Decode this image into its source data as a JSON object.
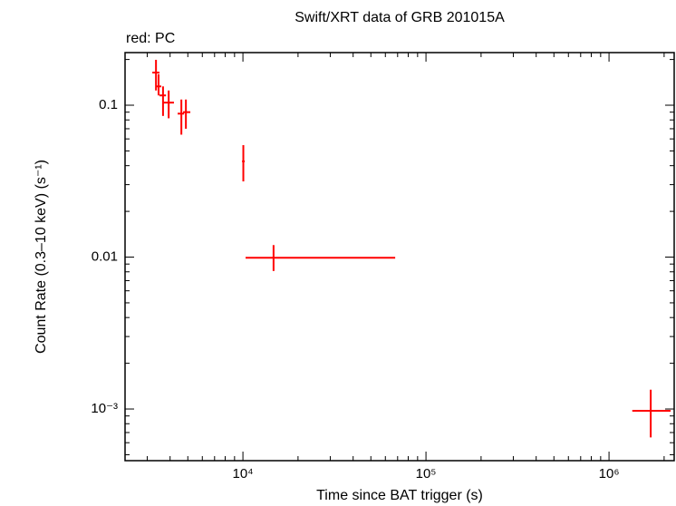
{
  "chart_data": {
    "type": "errorbar",
    "title": "Swift/XRT data of GRB 201015A",
    "subtitle": "red: PC",
    "xlabel": "Time since BAT trigger (s)",
    "ylabel": "Count Rate (0.3–10 keV) (s⁻¹)",
    "xscale": "log",
    "yscale": "log",
    "xlim": [
      2270,
      2270000
    ],
    "ylim": [
      0.000457,
      0.222
    ],
    "xticks": [
      {
        "value": 10000,
        "label": "10⁴"
      },
      {
        "value": 100000,
        "label": "10⁵"
      },
      {
        "value": 1000000,
        "label": "10⁶"
      }
    ],
    "yticks": [
      {
        "value": 0.001,
        "label": "10⁻³"
      },
      0.01,
      0.1
    ],
    "color": "#ff0000",
    "x": [
      3350,
      3460,
      3660,
      3930,
      4610,
      4880,
      10050,
      14700,
      1690000
    ],
    "x_low": [
      3200,
      3350,
      3500,
      3660,
      4400,
      4710,
      9890,
      10340,
      1340000
    ],
    "x_high": [
      3500,
      3580,
      3800,
      4200,
      4770,
      5160,
      10230,
      67900,
      2170000
    ],
    "y": [
      0.164,
      0.133,
      0.116,
      0.104,
      0.088,
      0.09,
      0.0427,
      0.0099,
      0.000973
    ],
    "y_low": [
      0.125,
      0.116,
      0.085,
      0.082,
      0.064,
      0.07,
      0.0315,
      0.0081,
      0.00065
    ],
    "y_high": [
      0.199,
      0.16,
      0.133,
      0.125,
      0.109,
      0.109,
      0.0546,
      0.012,
      0.00134
    ]
  }
}
